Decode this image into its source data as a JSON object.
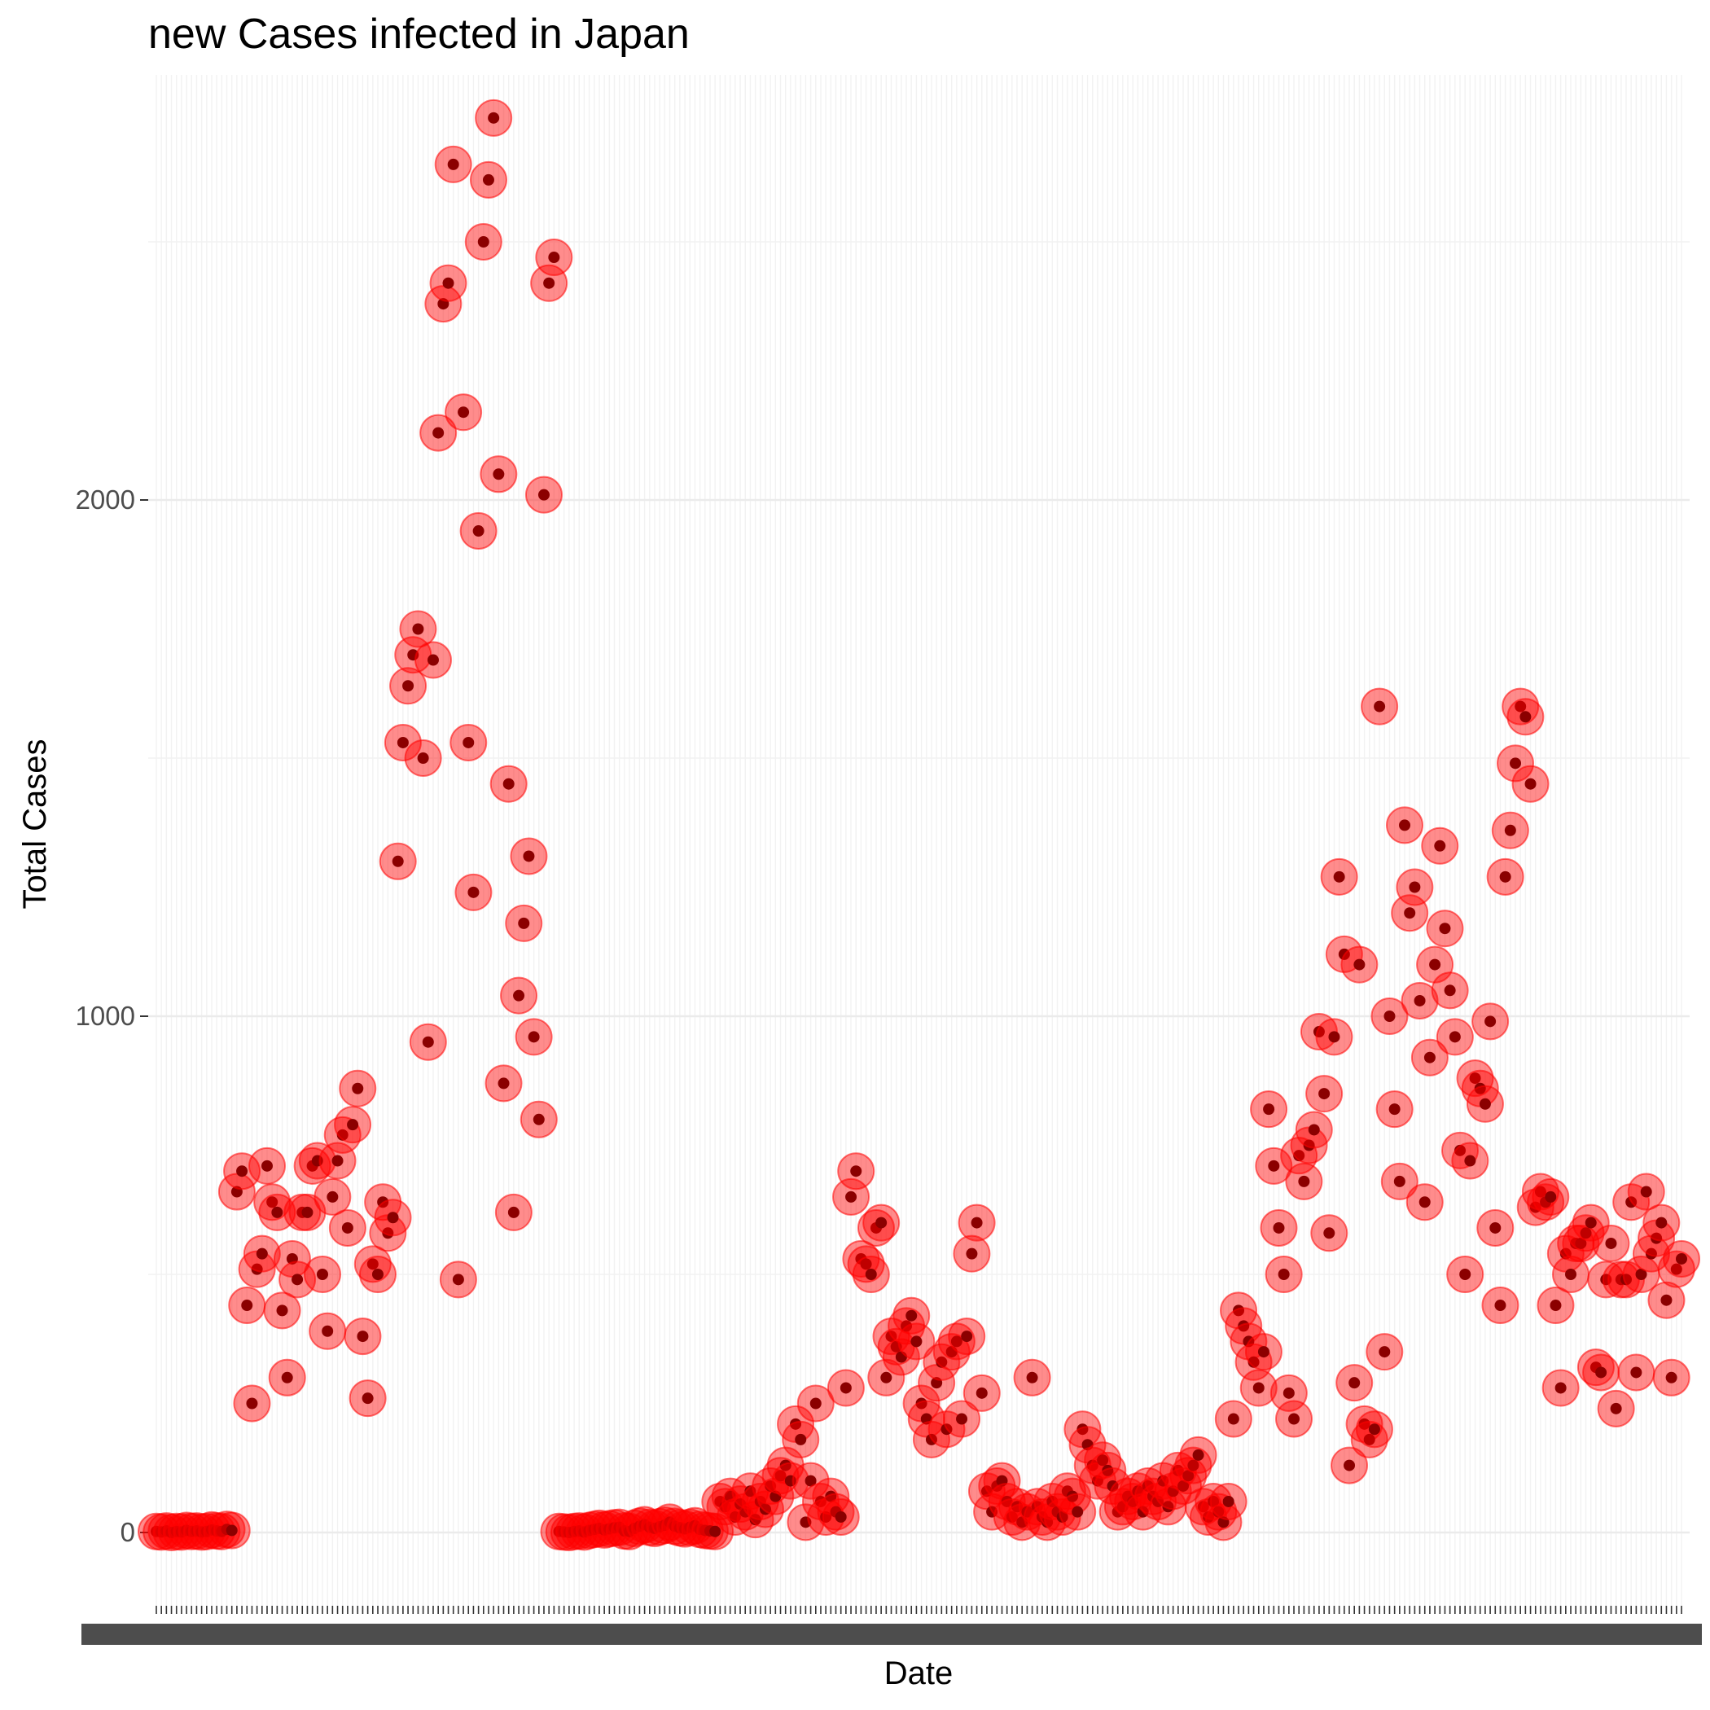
{
  "chart_data": {
    "type": "scatter",
    "title": "new Cases infected in Japan",
    "xlabel": "Date",
    "ylabel": "Total Cases",
    "ylim": [
      -150,
      2880
    ],
    "y_ticks": [
      0,
      1000,
      2000
    ],
    "grid": true,
    "x_axis": "categorical dates, tick labels overprinted and unreadable",
    "point_style": "small dark red dot inside large semi-transparent red circle",
    "colors": {
      "outer": "#ff0000",
      "inner": "#8b0000",
      "grid_major": "#ebebeb",
      "grid_minor": "#f2f2f2"
    },
    "series": [
      {
        "values": [
          2,
          1,
          3,
          0,
          2,
          1,
          4,
          2,
          3,
          1,
          2,
          5,
          3,
          2,
          6,
          4,
          660,
          700,
          440,
          250,
          510,
          540,
          710,
          640,
          620,
          430,
          300,
          530,
          490,
          620,
          620,
          710,
          720,
          500,
          390,
          650,
          720,
          770,
          590,
          790,
          860,
          380,
          260,
          520,
          500,
          640,
          580,
          610,
          1300,
          1530,
          1640,
          1700,
          1750,
          1500,
          950,
          1690,
          2130,
          2380,
          2420,
          2650,
          490,
          2170,
          1530,
          1240,
          1940,
          2500,
          2620,
          2740,
          2050,
          870,
          1450,
          620,
          1040,
          1180,
          1310,
          960,
          800,
          2010,
          2420,
          2470,
          2,
          1,
          0,
          2,
          3,
          1,
          4,
          6,
          8,
          5,
          7,
          9,
          10,
          3,
          2,
          8,
          12,
          15,
          10,
          8,
          11,
          14,
          20,
          12,
          9,
          7,
          10,
          13,
          6,
          4,
          3,
          2,
          60,
          50,
          70,
          30,
          55,
          40,
          80,
          25,
          60,
          45,
          90,
          70,
          110,
          130,
          100,
          210,
          180,
          20,
          100,
          250,
          60,
          30,
          70,
          40,
          30,
          280,
          650,
          700,
          530,
          520,
          500,
          590,
          600,
          300,
          380,
          360,
          340,
          400,
          420,
          370,
          250,
          220,
          180,
          290,
          330,
          200,
          350,
          370,
          220,
          380,
          540,
          600,
          270,
          80,
          40,
          90,
          100,
          60,
          30,
          50,
          20,
          40,
          300,
          50,
          30,
          20,
          60,
          40,
          30,
          80,
          70,
          40,
          200,
          170,
          130,
          100,
          140,
          120,
          90,
          40,
          50,
          70,
          60,
          80,
          40,
          90,
          70,
          60,
          100,
          50,
          80,
          120,
          90,
          110,
          130,
          150,
          50,
          30,
          60,
          40,
          20,
          60,
          220,
          430,
          400,
          370,
          330,
          280,
          350,
          820,
          710,
          590,
          500,
          270,
          220,
          730,
          680,
          750,
          780,
          970,
          850,
          580,
          960,
          1270,
          1120,
          130,
          290,
          1100,
          210,
          180,
          200,
          1600,
          350,
          1000,
          820,
          680,
          1370,
          1200,
          1250,
          1030,
          640,
          920,
          1100,
          1330,
          1170,
          1050,
          960,
          740,
          500,
          720,
          880,
          860,
          830,
          990,
          590,
          440,
          1270,
          1360,
          1490,
          1600,
          1580,
          1450,
          630,
          660,
          640,
          650,
          440,
          280,
          540,
          500,
          560,
          560,
          580,
          600,
          320,
          310,
          490,
          560,
          240,
          490,
          490,
          640,
          310,
          500,
          660,
          540,
          570,
          600,
          450,
          300,
          510,
          530
        ]
      }
    ]
  }
}
